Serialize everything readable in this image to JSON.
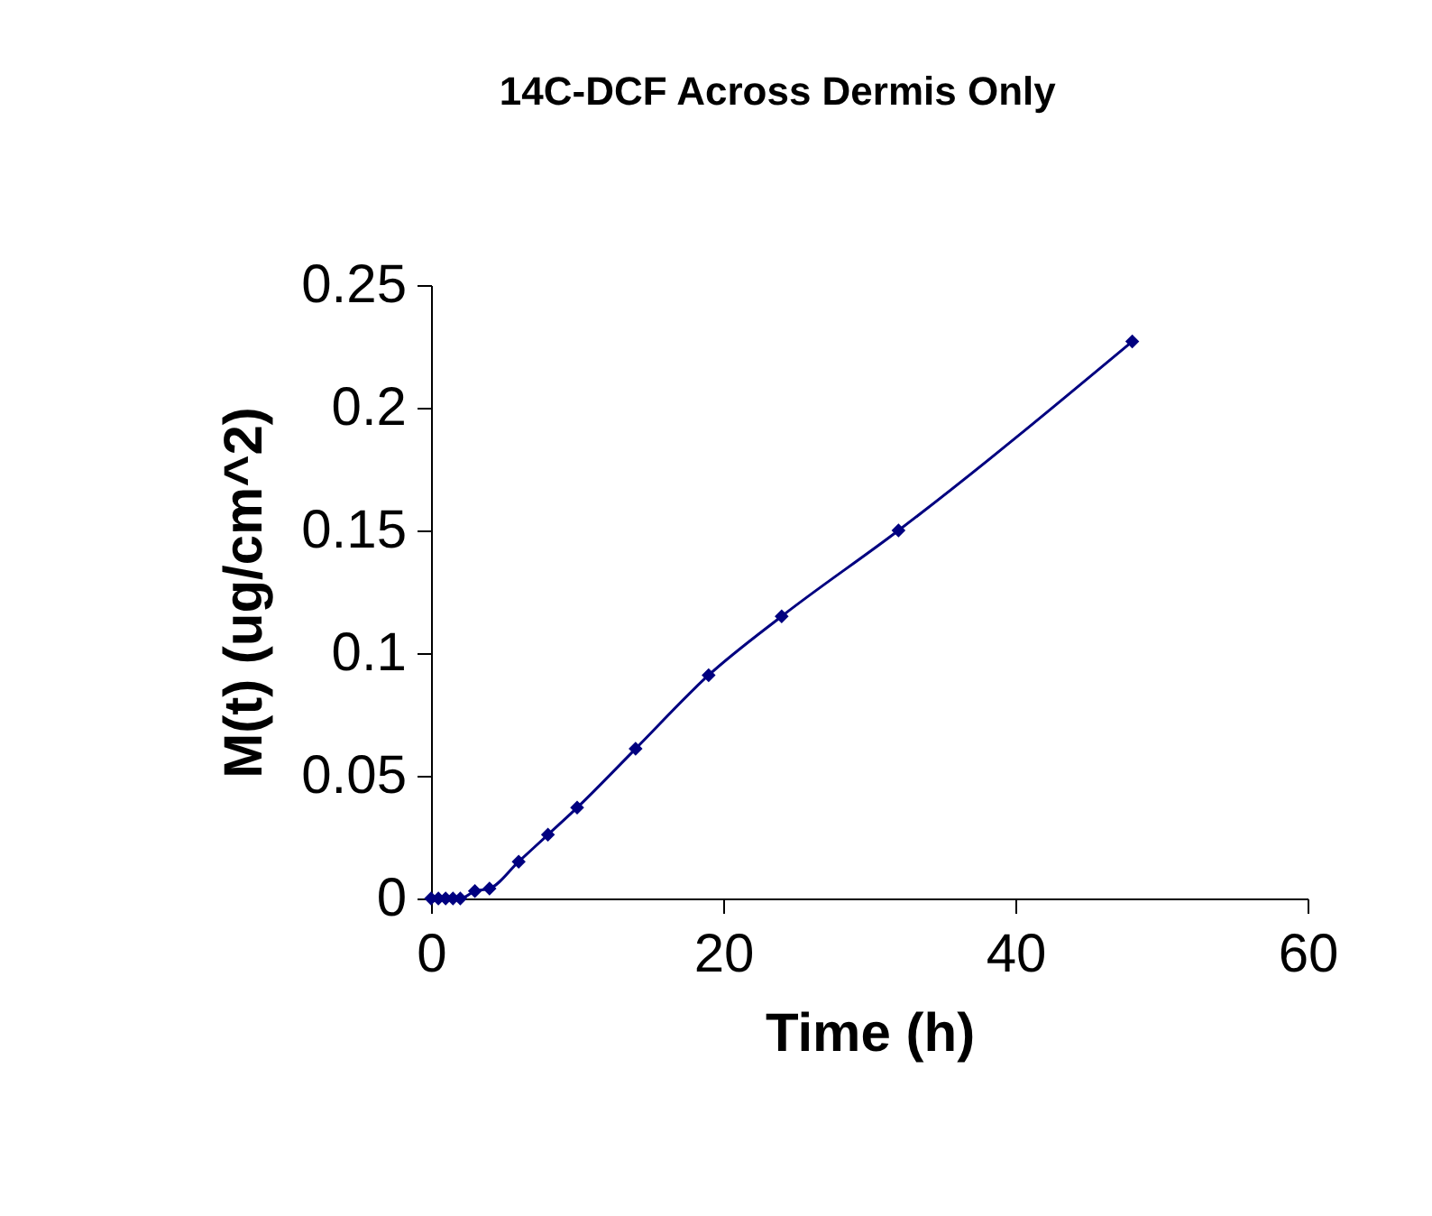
{
  "chart_data": {
    "type": "line",
    "title": "14C-DCF Across Dermis Only",
    "xlabel": "Time (h)",
    "ylabel": "M(t) (ug/cm^2)",
    "x": [
      0,
      0.5,
      1,
      1.5,
      2,
      3,
      4,
      6,
      8,
      10,
      14,
      19,
      24,
      32,
      48
    ],
    "series": [
      {
        "color": "#000080",
        "values": [
          0,
          0,
          0,
          0,
          0,
          0.003,
          0.004,
          0.015,
          0.026,
          0.037,
          0.061,
          0.091,
          0.115,
          0.15,
          0.227
        ]
      }
    ],
    "xlim": [
      0,
      60
    ],
    "xticks": [
      0,
      20,
      40,
      60
    ],
    "ylim": [
      0,
      0.25
    ],
    "yticks": [
      0,
      0.05,
      0.1,
      0.15,
      0.2,
      0.25
    ],
    "marker": "diamond",
    "line_style": "solid",
    "grid": false
  }
}
